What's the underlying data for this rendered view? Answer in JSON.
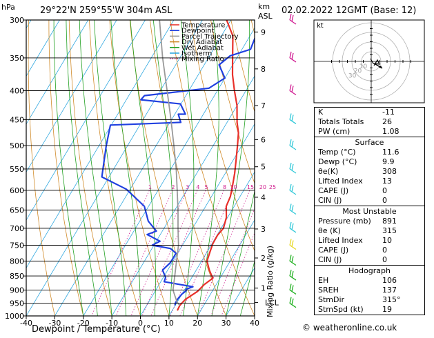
{
  "header": {
    "hpa_unit": "hPa",
    "location": "29°22'N  259°55'W  304m  ASL",
    "km_unit": "km",
    "asl_unit": "ASL",
    "datetime": "02.02.2022  12GMT  (Base: 12)"
  },
  "legend": {
    "items": [
      {
        "label": "Temperature",
        "color": "#e8302a",
        "style": "solid"
      },
      {
        "label": "Dewpoint",
        "color": "#2040e0",
        "style": "solid"
      },
      {
        "label": "Parcel Trajectory",
        "color": "#999999",
        "style": "solid"
      },
      {
        "label": "Dry Adiabat",
        "color": "#d08a28",
        "style": "solid"
      },
      {
        "label": "Wet Adiabat",
        "color": "#20a020",
        "style": "solid"
      },
      {
        "label": "Isotherm",
        "color": "#30a8e0",
        "style": "solid"
      },
      {
        "label": "Mixing Ratio",
        "color": "#d02090",
        "style": "dotted"
      }
    ]
  },
  "chart_data": {
    "type": "line",
    "title": "",
    "xlabel": "Dewpoint / Temperature (°C)",
    "ylabel": "hPa",
    "xlim": [
      -40,
      40
    ],
    "ylim": [
      1000,
      300
    ],
    "x_ticks": [
      "-40",
      "-30",
      "-20",
      "-10",
      "0",
      "10",
      "20",
      "30",
      "40"
    ],
    "pressure_levels": [
      "300",
      "350",
      "400",
      "450",
      "500",
      "550",
      "600",
      "650",
      "700",
      "750",
      "800",
      "850",
      "900",
      "950",
      "1000"
    ],
    "km_axis": {
      "label": "Mixing Ratio (g/kg)",
      "ticks": [
        {
          "label": "9",
          "p": 315
        },
        {
          "label": "8",
          "p": 366
        },
        {
          "label": "7",
          "p": 425
        },
        {
          "label": "6",
          "p": 488
        },
        {
          "label": "5",
          "p": 545
        },
        {
          "label": "4",
          "p": 617
        },
        {
          "label": "3",
          "p": 702
        },
        {
          "label": "2",
          "p": 790
        },
        {
          "label": "1",
          "p": 893
        },
        {
          "label": "LCL",
          "p": 947
        }
      ]
    },
    "mixing_ratio_labels": [
      "1",
      "2",
      "3",
      "4",
      "5",
      "8",
      "10",
      "15",
      "20",
      "25"
    ],
    "mixing_ratio_values": [
      1,
      2,
      3,
      4,
      5,
      8,
      10,
      15,
      20,
      25
    ],
    "series": [
      {
        "name": "Temperature",
        "color": "#e8302a",
        "points": [
          [
            11.8,
            978
          ],
          [
            11.6,
            958
          ],
          [
            12.3,
            935
          ],
          [
            14.9,
            905
          ],
          [
            15.8,
            880
          ],
          [
            17.5,
            858
          ],
          [
            14.6,
            830
          ],
          [
            11.9,
            800
          ],
          [
            11.0,
            770
          ],
          [
            10.3,
            745
          ],
          [
            10.2,
            720
          ],
          [
            10.8,
            700
          ],
          [
            9.6,
            670
          ],
          [
            7.2,
            640
          ],
          [
            6.6,
            615
          ],
          [
            5.2,
            590
          ],
          [
            3.3,
            560
          ],
          [
            1.0,
            530
          ],
          [
            -1.5,
            500
          ],
          [
            -3.8,
            475
          ],
          [
            -6.5,
            455
          ],
          [
            -10.0,
            425
          ],
          [
            -14.0,
            400
          ],
          [
            -18.0,
            375
          ],
          [
            -21.5,
            350
          ],
          [
            -26.0,
            320
          ],
          [
            -31.5,
            300
          ]
        ]
      },
      {
        "name": "Dewpoint",
        "color": "#2040e0",
        "points": [
          [
            9.9,
            958
          ],
          [
            9.6,
            950
          ],
          [
            9.5,
            935
          ],
          [
            10.0,
            915
          ],
          [
            10.8,
            903
          ],
          [
            10.4,
            897
          ],
          [
            12.3,
            888
          ],
          [
            8.6,
            882
          ],
          [
            1.2,
            870
          ],
          [
            0.8,
            855
          ],
          [
            -1.8,
            830
          ],
          [
            -0.6,
            805
          ],
          [
            -0.6,
            775
          ],
          [
            -3.6,
            760
          ],
          [
            -10.6,
            750
          ],
          [
            -8.7,
            738
          ],
          [
            -14.6,
            718
          ],
          [
            -12.1,
            708
          ],
          [
            -17.0,
            680
          ],
          [
            -21.5,
            640
          ],
          [
            -31.4,
            597
          ],
          [
            -42.5,
            568
          ],
          [
            -47.4,
            501
          ],
          [
            -50.3,
            460
          ],
          [
            -26.2,
            455
          ],
          [
            -28.8,
            440
          ],
          [
            -26.3,
            440
          ],
          [
            -30.2,
            422
          ],
          [
            -44.9,
            415
          ],
          [
            -44.5,
            408
          ],
          [
            -23.5,
            396
          ],
          [
            -20.0,
            380
          ],
          [
            -24.8,
            360
          ],
          [
            -22.8,
            347
          ],
          [
            -17.0,
            338
          ],
          [
            -17.8,
            323
          ],
          [
            -17.1,
            312
          ],
          [
            -15.5,
            300
          ]
        ]
      },
      {
        "name": "Parcel Trajectory",
        "color": "#999999",
        "points": [
          [
            11.6,
            958
          ],
          [
            9.9,
            945
          ],
          [
            6.0,
            900
          ],
          [
            3.7,
            850
          ],
          [
            1.2,
            800
          ],
          [
            -1.4,
            750
          ],
          [
            -5.1,
            700
          ],
          [
            -8.9,
            650
          ],
          [
            -13.3,
            600
          ],
          [
            -18.1,
            550
          ],
          [
            -23.8,
            500
          ],
          [
            -30.2,
            450
          ],
          [
            -37.6,
            400
          ],
          [
            -46.0,
            350
          ],
          [
            -55.0,
            300
          ]
        ]
      }
    ],
    "wind_barbs": [
      {
        "p": 300,
        "color": "#d01890"
      },
      {
        "p": 350,
        "color": "#d01890"
      },
      {
        "p": 400,
        "color": "#d01890"
      },
      {
        "p": 450,
        "color": "#30c8d8"
      },
      {
        "p": 500,
        "color": "#30c8d8"
      },
      {
        "p": 550,
        "color": "#30c8d8"
      },
      {
        "p": 600,
        "color": "#30c8d8"
      },
      {
        "p": 650,
        "color": "#30c8d8"
      },
      {
        "p": 700,
        "color": "#30c8d8"
      },
      {
        "p": 750,
        "color": "#e8d820"
      },
      {
        "p": 800,
        "color": "#20b020"
      },
      {
        "p": 850,
        "color": "#20b020"
      },
      {
        "p": 900,
        "color": "#20b020"
      },
      {
        "p": 950,
        "color": "#20b020"
      }
    ]
  },
  "hodograph": {
    "unit": "kt",
    "ring_labels": [
      "10",
      "20",
      "30"
    ]
  },
  "indices": {
    "general": [
      {
        "label": "K",
        "value": "-11"
      },
      {
        "label": "Totals Totals",
        "value": "26"
      },
      {
        "label": "PW (cm)",
        "value": "1.08"
      }
    ],
    "surface": {
      "title": "Surface",
      "rows": [
        {
          "label": "Temp (°C)",
          "value": "11.6"
        },
        {
          "label": "Dewp (°C)",
          "value": "9.9"
        },
        {
          "label": "θe(K)",
          "value": "308"
        },
        {
          "label": "Lifted Index",
          "value": "13"
        },
        {
          "label": "CAPE (J)",
          "value": "0"
        },
        {
          "label": "CIN (J)",
          "value": "0"
        }
      ]
    },
    "unstable": {
      "title": "Most Unstable",
      "rows": [
        {
          "label": "Pressure (mb)",
          "value": "891"
        },
        {
          "label": "θe (K)",
          "value": "315"
        },
        {
          "label": "Lifted Index",
          "value": "10"
        },
        {
          "label": "CAPE (J)",
          "value": "0"
        },
        {
          "label": "CIN (J)",
          "value": "0"
        }
      ]
    },
    "hodograph": {
      "title": "Hodograph",
      "rows": [
        {
          "label": "EH",
          "value": "106"
        },
        {
          "label": "SREH",
          "value": "137"
        },
        {
          "label": "StmDir",
          "value": "315°"
        },
        {
          "label": "StmSpd (kt)",
          "value": "19"
        }
      ]
    }
  },
  "footer": {
    "credit": "© weatheronline.co.uk"
  }
}
